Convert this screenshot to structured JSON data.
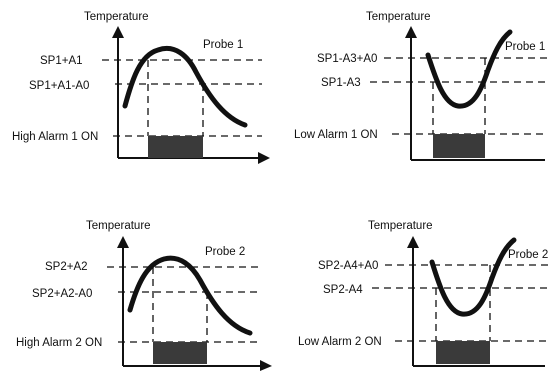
{
  "diagrams": [
    {
      "y_axis_title": "Temperature",
      "probe_label": "Probe 1",
      "upper_level_label": "SP1+A1",
      "lower_level_label": "SP1+A1-A0",
      "alarm_label": "High Alarm 1 ON",
      "alarm_type": "high"
    },
    {
      "y_axis_title": "Temperature",
      "probe_label": "Probe 1",
      "upper_level_label": "SP1-A3+A0",
      "lower_level_label": "SP1-A3",
      "alarm_label": "Low Alarm 1 ON",
      "alarm_type": "low"
    },
    {
      "y_axis_title": "Temperature",
      "probe_label": "Probe 2",
      "upper_level_label": "SP2+A2",
      "lower_level_label": "SP2+A2-A0",
      "alarm_label": "High Alarm 2 ON",
      "alarm_type": "high"
    },
    {
      "y_axis_title": "Temperature",
      "probe_label": "Probe 2",
      "upper_level_label": "SP2-A4+A0",
      "lower_level_label": "SP2-A4",
      "alarm_label": "Low Alarm 2 ON",
      "alarm_type": "low"
    }
  ],
  "colors": {
    "line": "#111111",
    "alarm_block": "#3a3a3a",
    "background": "#ffffff"
  }
}
